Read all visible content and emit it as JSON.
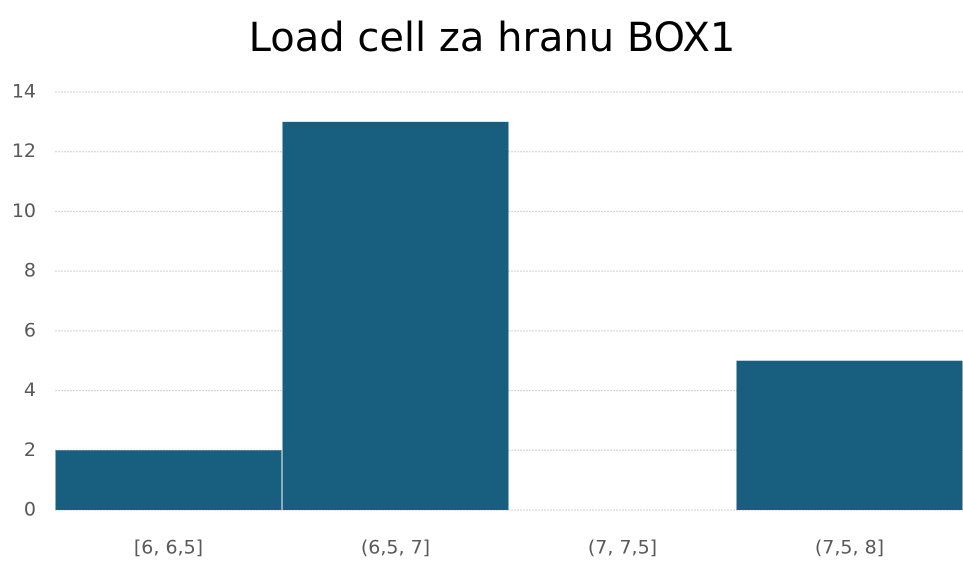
{
  "chart_data": {
    "type": "bar",
    "title": "Load cell za hranu BOX1",
    "categories": [
      "[6, 6,5]",
      "(6,5, 7]",
      "(7, 7,5]",
      "(7,5, 8]"
    ],
    "values": [
      2,
      13,
      0,
      5
    ],
    "color": "#175e7f",
    "ylim": [
      0,
      14
    ],
    "yticks": [
      0,
      2,
      4,
      6,
      8,
      10,
      12,
      14
    ],
    "grid": true
  }
}
